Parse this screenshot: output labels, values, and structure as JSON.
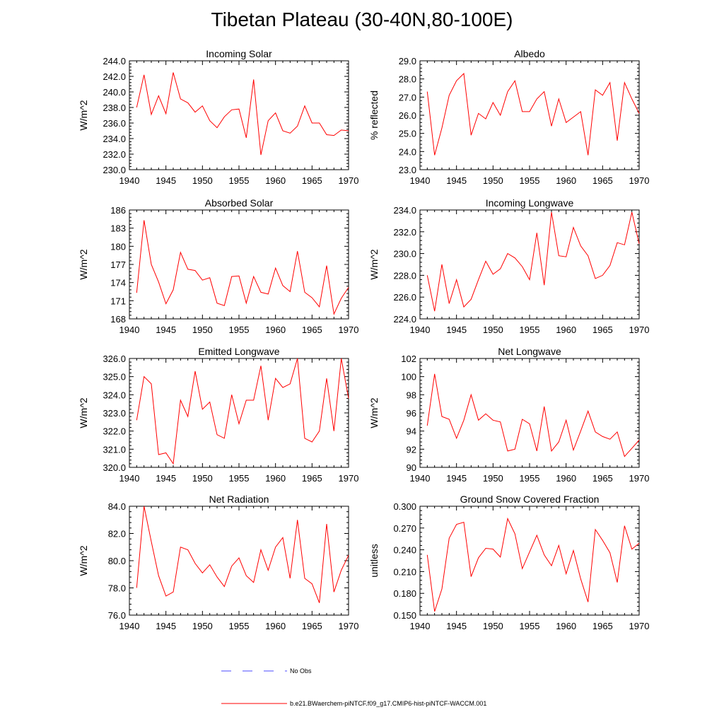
{
  "title": "Tibetan Plateau (30-40N,80-100E)",
  "legend": {
    "obs_label": "No Obs",
    "obs_color": "#4a4aff",
    "model_label": "b.e21.BWaerchem-piNTCF.f09_g17.CMIP6-hist-piNTCF-WACCM.001",
    "model_color": "#ff0000"
  },
  "chart_data": [
    {
      "type": "line",
      "title": "Incoming Solar",
      "ylabel": "W/m^2",
      "xlim": [
        1940,
        1970
      ],
      "xticks": [
        1940,
        1945,
        1950,
        1955,
        1960,
        1965,
        1970
      ],
      "ylim": [
        230,
        244
      ],
      "yticks": [
        "230.0",
        "232.0",
        "234.0",
        "236.0",
        "238.0",
        "240.0",
        "242.0",
        "244.0"
      ],
      "series": [
        {
          "color": "#ff0000",
          "x": [
            1941,
            1942,
            1943,
            1944,
            1945,
            1946,
            1947,
            1948,
            1949,
            1950,
            1951,
            1952,
            1953,
            1954,
            1955,
            1956,
            1957,
            1958,
            1959,
            1960,
            1961,
            1962,
            1963,
            1964,
            1965,
            1966,
            1967,
            1968,
            1969,
            1970
          ],
          "values": [
            238.0,
            242.2,
            237.1,
            239.5,
            237.2,
            242.5,
            239.1,
            238.6,
            237.4,
            238.2,
            236.3,
            235.4,
            236.8,
            237.7,
            237.8,
            234.1,
            241.6,
            231.9,
            236.3,
            237.3,
            235.0,
            234.7,
            235.6,
            238.2,
            236.0,
            236.0,
            234.5,
            234.4,
            235.1,
            235.0
          ]
        }
      ]
    },
    {
      "type": "line",
      "title": "Albedo",
      "ylabel": "% reflected",
      "xlim": [
        1940,
        1970
      ],
      "xticks": [
        1940,
        1945,
        1950,
        1955,
        1960,
        1965,
        1970
      ],
      "ylim": [
        23,
        29
      ],
      "yticks": [
        "23.0",
        "24.0",
        "25.0",
        "26.0",
        "27.0",
        "28.0",
        "29.0"
      ],
      "series": [
        {
          "color": "#ff0000",
          "x": [
            1941,
            1942,
            1943,
            1944,
            1945,
            1946,
            1947,
            1948,
            1949,
            1950,
            1951,
            1952,
            1953,
            1954,
            1955,
            1956,
            1957,
            1958,
            1959,
            1960,
            1961,
            1962,
            1963,
            1964,
            1965,
            1966,
            1967,
            1968,
            1969,
            1970
          ],
          "values": [
            27.3,
            23.8,
            25.3,
            27.1,
            27.9,
            28.3,
            24.9,
            26.1,
            25.8,
            26.7,
            26.0,
            27.3,
            27.9,
            26.2,
            26.2,
            26.9,
            27.3,
            25.4,
            26.9,
            25.6,
            25.9,
            26.2,
            23.8,
            27.4,
            27.1,
            27.8,
            24.6,
            27.8,
            26.9,
            26.1
          ]
        }
      ]
    },
    {
      "type": "line",
      "title": "Absorbed Solar",
      "ylabel": "W/m^2",
      "xlim": [
        1940,
        1970
      ],
      "xticks": [
        1940,
        1945,
        1950,
        1955,
        1960,
        1965,
        1970
      ],
      "ylim": [
        168,
        186
      ],
      "yticks": [
        "168",
        "171",
        "174",
        "177",
        "180",
        "183",
        "186"
      ],
      "series": [
        {
          "color": "#ff0000",
          "x": [
            1941,
            1942,
            1943,
            1944,
            1945,
            1946,
            1947,
            1948,
            1949,
            1950,
            1951,
            1952,
            1953,
            1954,
            1955,
            1956,
            1957,
            1958,
            1959,
            1960,
            1961,
            1962,
            1963,
            1964,
            1965,
            1966,
            1967,
            1968,
            1969,
            1970
          ],
          "values": [
            172.3,
            184.3,
            177.0,
            174.1,
            170.5,
            172.8,
            179.0,
            176.2,
            176.0,
            174.4,
            174.8,
            170.6,
            170.2,
            175.0,
            175.1,
            170.6,
            175.0,
            172.4,
            172.1,
            176.4,
            173.5,
            172.5,
            179.2,
            172.4,
            171.5,
            170.0,
            176.8,
            168.8,
            171.4,
            173.2
          ]
        }
      ]
    },
    {
      "type": "line",
      "title": "Incoming Longwave",
      "ylabel": "W/m^2",
      "xlim": [
        1940,
        1970
      ],
      "xticks": [
        1940,
        1945,
        1950,
        1955,
        1960,
        1965,
        1970
      ],
      "ylim": [
        224,
        234
      ],
      "yticks": [
        "224.0",
        "226.0",
        "228.0",
        "230.0",
        "232.0",
        "234.0"
      ],
      "series": [
        {
          "color": "#ff0000",
          "x": [
            1941,
            1942,
            1943,
            1944,
            1945,
            1946,
            1947,
            1948,
            1949,
            1950,
            1951,
            1952,
            1953,
            1954,
            1955,
            1956,
            1957,
            1958,
            1959,
            1960,
            1961,
            1962,
            1963,
            1964,
            1965,
            1966,
            1967,
            1968,
            1969,
            1970
          ],
          "values": [
            228.0,
            224.7,
            229.0,
            225.4,
            227.6,
            225.1,
            225.8,
            227.6,
            229.3,
            228.1,
            228.6,
            230.0,
            229.6,
            228.8,
            227.6,
            231.9,
            227.1,
            233.8,
            229.8,
            229.7,
            232.4,
            230.7,
            229.8,
            227.7,
            228.0,
            228.9,
            231.0,
            230.8,
            233.8,
            230.9
          ]
        }
      ]
    },
    {
      "type": "line",
      "title": "Emitted Longwave",
      "ylabel": "W/m^2",
      "xlim": [
        1940,
        1970
      ],
      "xticks": [
        1940,
        1945,
        1950,
        1955,
        1960,
        1965,
        1970
      ],
      "ylim": [
        320,
        326
      ],
      "yticks": [
        "320.0",
        "321.0",
        "322.0",
        "323.0",
        "324.0",
        "325.0",
        "326.0"
      ],
      "series": [
        {
          "color": "#ff0000",
          "x": [
            1941,
            1942,
            1943,
            1944,
            1945,
            1946,
            1947,
            1948,
            1949,
            1950,
            1951,
            1952,
            1953,
            1954,
            1955,
            1956,
            1957,
            1958,
            1959,
            1960,
            1961,
            1962,
            1963,
            1964,
            1965,
            1966,
            1967,
            1968,
            1969,
            1970
          ],
          "values": [
            322.6,
            325.0,
            324.6,
            320.7,
            320.8,
            320.2,
            323.7,
            322.8,
            325.3,
            323.2,
            323.6,
            321.8,
            321.6,
            324.0,
            322.4,
            323.7,
            323.7,
            325.6,
            322.6,
            324.9,
            324.4,
            324.6,
            326.0,
            321.6,
            321.4,
            322.0,
            324.9,
            322.0,
            326.0,
            323.8
          ]
        }
      ]
    },
    {
      "type": "line",
      "title": "Net Longwave",
      "ylabel": "W/m^2",
      "xlim": [
        1940,
        1970
      ],
      "xticks": [
        1940,
        1945,
        1950,
        1955,
        1960,
        1965,
        1970
      ],
      "ylim": [
        90,
        102
      ],
      "yticks": [
        "90",
        "92",
        "94",
        "96",
        "98",
        "100",
        "102"
      ],
      "series": [
        {
          "color": "#ff0000",
          "x": [
            1941,
            1942,
            1943,
            1944,
            1945,
            1946,
            1947,
            1948,
            1949,
            1950,
            1951,
            1952,
            1953,
            1954,
            1955,
            1956,
            1957,
            1958,
            1959,
            1960,
            1961,
            1962,
            1963,
            1964,
            1965,
            1966,
            1967,
            1968,
            1969,
            1970
          ],
          "values": [
            94.6,
            100.3,
            95.6,
            95.3,
            93.2,
            95.2,
            98.0,
            95.2,
            95.9,
            95.2,
            95.0,
            91.8,
            92.0,
            95.3,
            94.8,
            91.8,
            96.7,
            91.8,
            92.8,
            95.2,
            91.9,
            94.0,
            96.2,
            93.9,
            93.4,
            93.1,
            93.9,
            91.2,
            92.1,
            93.0
          ]
        }
      ]
    },
    {
      "type": "line",
      "title": "Net Radiation",
      "ylabel": "W/m^2",
      "xlim": [
        1940,
        1970
      ],
      "xticks": [
        1940,
        1945,
        1950,
        1955,
        1960,
        1965,
        1970
      ],
      "ylim": [
        76,
        84
      ],
      "yticks": [
        "76.0",
        "78.0",
        "80.0",
        "82.0",
        "84.0"
      ],
      "series": [
        {
          "color": "#ff0000",
          "x": [
            1941,
            1942,
            1943,
            1944,
            1945,
            1946,
            1947,
            1948,
            1949,
            1950,
            1951,
            1952,
            1953,
            1954,
            1955,
            1956,
            1957,
            1958,
            1959,
            1960,
            1961,
            1962,
            1963,
            1964,
            1965,
            1966,
            1967,
            1968,
            1969,
            1970
          ],
          "values": [
            78.0,
            84.0,
            81.4,
            78.9,
            77.4,
            77.7,
            81.0,
            80.8,
            79.8,
            79.1,
            79.7,
            78.8,
            78.1,
            79.6,
            80.2,
            78.9,
            78.4,
            80.8,
            79.3,
            81.0,
            81.7,
            78.7,
            83.0,
            78.7,
            78.3,
            76.9,
            82.7,
            77.7,
            79.3,
            80.4
          ]
        }
      ]
    },
    {
      "type": "line",
      "title": "Ground Snow Covered Fraction",
      "ylabel": "unitless",
      "xlim": [
        1940,
        1970
      ],
      "xticks": [
        1940,
        1945,
        1950,
        1955,
        1960,
        1965,
        1970
      ],
      "ylim": [
        0.15,
        0.3
      ],
      "yticks": [
        "0.150",
        "0.180",
        "0.210",
        "0.240",
        "0.270",
        "0.300"
      ],
      "series": [
        {
          "color": "#ff0000",
          "x": [
            1941,
            1942,
            1943,
            1944,
            1945,
            1946,
            1947,
            1948,
            1949,
            1950,
            1951,
            1952,
            1953,
            1954,
            1955,
            1956,
            1957,
            1958,
            1959,
            1960,
            1961,
            1962,
            1963,
            1964,
            1965,
            1966,
            1967,
            1968,
            1969,
            1970
          ],
          "values": [
            0.233,
            0.155,
            0.186,
            0.256,
            0.275,
            0.278,
            0.203,
            0.229,
            0.242,
            0.241,
            0.23,
            0.283,
            0.262,
            0.214,
            0.237,
            0.26,
            0.233,
            0.218,
            0.246,
            0.207,
            0.239,
            0.2,
            0.168,
            0.268,
            0.253,
            0.236,
            0.195,
            0.273,
            0.241,
            0.249
          ]
        }
      ]
    }
  ]
}
